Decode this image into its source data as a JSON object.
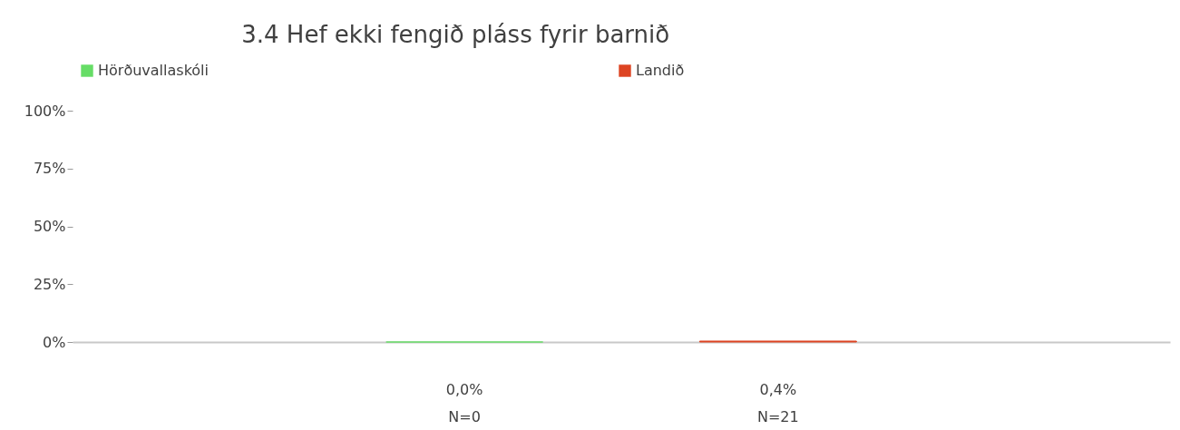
{
  "chart_data": {
    "type": "bar",
    "title": "3.4 Hef ekki fengið pláss fyrir barnið",
    "categories": [
      null
    ],
    "series": [
      {
        "name": "Hörðuvallaskóli",
        "color": "#66dd66",
        "values": [
          0.0
        ],
        "value_labels": [
          "0,0%\nN=0"
        ]
      },
      {
        "name": "Landið",
        "color": "#dd4422",
        "values": [
          0.4
        ],
        "value_labels": [
          "0,4%\nN=21"
        ]
      }
    ],
    "ylim": [
      0,
      100
    ],
    "yticks": [
      {
        "value": 0,
        "label": "0%"
      },
      {
        "value": 25,
        "label": "25%"
      },
      {
        "value": 50,
        "label": "50%"
      },
      {
        "value": 75,
        "label": "75%"
      },
      {
        "value": 100,
        "label": "100%"
      }
    ],
    "grid": false,
    "legend": "top left"
  }
}
